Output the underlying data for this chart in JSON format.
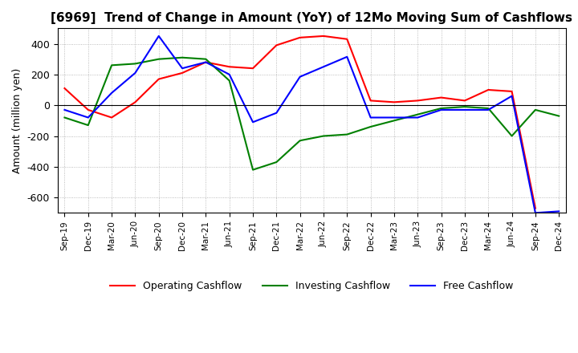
{
  "title": "[6969]  Trend of Change in Amount (YoY) of 12Mo Moving Sum of Cashflows",
  "ylabel": "Amount (million yen)",
  "x_labels": [
    "Sep-19",
    "Dec-19",
    "Mar-20",
    "Jun-20",
    "Sep-20",
    "Dec-20",
    "Mar-21",
    "Jun-21",
    "Sep-21",
    "Dec-21",
    "Mar-22",
    "Jun-22",
    "Sep-22",
    "Dec-22",
    "Mar-23",
    "Jun-23",
    "Sep-23",
    "Dec-23",
    "Mar-24",
    "Jun-24",
    "Sep-24",
    "Dec-24"
  ],
  "operating": [
    110,
    -30,
    -80,
    20,
    170,
    210,
    280,
    250,
    240,
    390,
    440,
    450,
    430,
    30,
    20,
    30,
    50,
    30,
    100,
    90,
    -670,
    null
  ],
  "investing": [
    -80,
    -130,
    260,
    270,
    300,
    310,
    300,
    160,
    -420,
    -370,
    -230,
    -200,
    -190,
    -140,
    -100,
    -60,
    -20,
    -10,
    -20,
    -200,
    -30,
    -70
  ],
  "free": [
    -30,
    -80,
    80,
    210,
    450,
    240,
    280,
    200,
    -110,
    -50,
    185,
    250,
    315,
    -80,
    -80,
    -80,
    -30,
    -30,
    -30,
    60,
    -700,
    -690
  ],
  "ylim": [
    -700,
    500
  ],
  "yticks": [
    -600,
    -400,
    -200,
    0,
    200,
    400
  ],
  "operating_color": "#ff0000",
  "investing_color": "#008000",
  "free_color": "#0000ff",
  "background_color": "#ffffff",
  "grid_color": "#aaaaaa",
  "title_fontsize": 11,
  "legend_labels": [
    "Operating Cashflow",
    "Investing Cashflow",
    "Free Cashflow"
  ]
}
